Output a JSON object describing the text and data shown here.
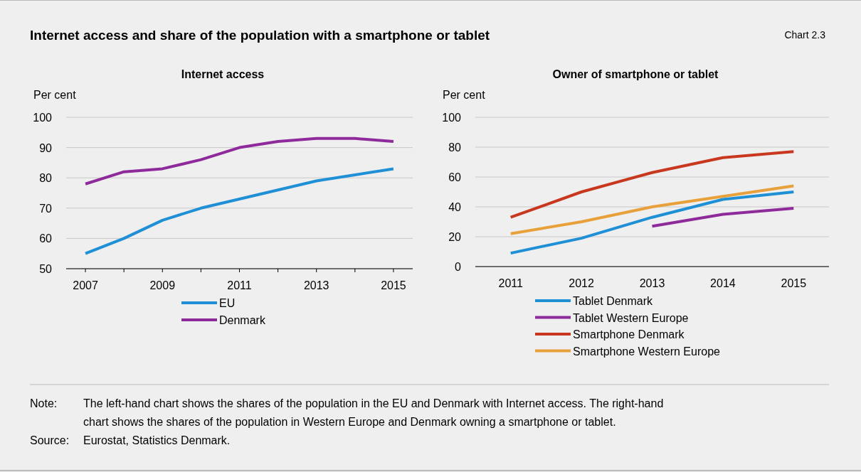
{
  "chart_data": [
    {
      "type": "other",
      "title": "Internet access and share of the population with a smartphone or tablet",
      "annotations": [
        "Chart 2.3",
        "Note:",
        "The left-hand chart shows the shares of the population in the EU and Denmark with Internet access. The right-hand chart shows the shares of the population in Western Europe and Denmark owning a smartphone or tablet.",
        "Source:",
        "Eurostat, Statistics Denmark."
      ]
    },
    {
      "type": "line",
      "title": "Internet access",
      "ylabel": "Per cent",
      "x": [
        2007,
        2008,
        2009,
        2010,
        2011,
        2012,
        2013,
        2014,
        2015
      ],
      "xlim": [
        2006.5,
        2015.5
      ],
      "xticks": [
        2007,
        {
          "value": 2008,
          "label": null
        },
        2009,
        {
          "value": 2010,
          "label": null
        },
        2011,
        {
          "value": 2012,
          "label": null
        },
        2013,
        {
          "value": 2014,
          "label": null
        },
        2015
      ],
      "ylim": [
        50,
        100
      ],
      "yticks": [
        50,
        60,
        70,
        80,
        90,
        100
      ],
      "grid": "y",
      "legend": "bottom",
      "series": [
        {
          "name": "EU",
          "color": "#1f8fd6",
          "values": [
            55,
            60,
            66,
            70,
            73,
            76,
            79,
            81,
            83
          ]
        },
        {
          "name": "Denmark",
          "color": "#8e2a9a",
          "values": [
            78,
            82,
            83,
            86,
            90,
            92,
            93,
            93,
            92
          ]
        }
      ]
    },
    {
      "type": "line",
      "title": "Owner of smartphone or tablet",
      "ylabel": "Per cent",
      "categories": [
        "2011",
        "2012",
        "2013",
        "2014",
        "2015"
      ],
      "ylim": [
        0,
        100
      ],
      "yticks": [
        0,
        20,
        40,
        60,
        80,
        100
      ],
      "grid": "y",
      "legend": "bottom",
      "series": [
        {
          "name": "Tablet Denmark",
          "color": "#1f8fd6",
          "values": [
            9,
            19,
            33,
            45,
            50
          ]
        },
        {
          "name": "Tablet Western Europe",
          "color": "#8e2a9a",
          "values": [
            null,
            null,
            27,
            35,
            39
          ]
        },
        {
          "name": "Smartphone Denmark",
          "color": "#c8381e",
          "values": [
            33,
            50,
            63,
            73,
            77
          ]
        },
        {
          "name": "Smartphone Western Europe",
          "color": "#e8a13a",
          "values": [
            22,
            30,
            40,
            47,
            54
          ]
        }
      ]
    }
  ]
}
